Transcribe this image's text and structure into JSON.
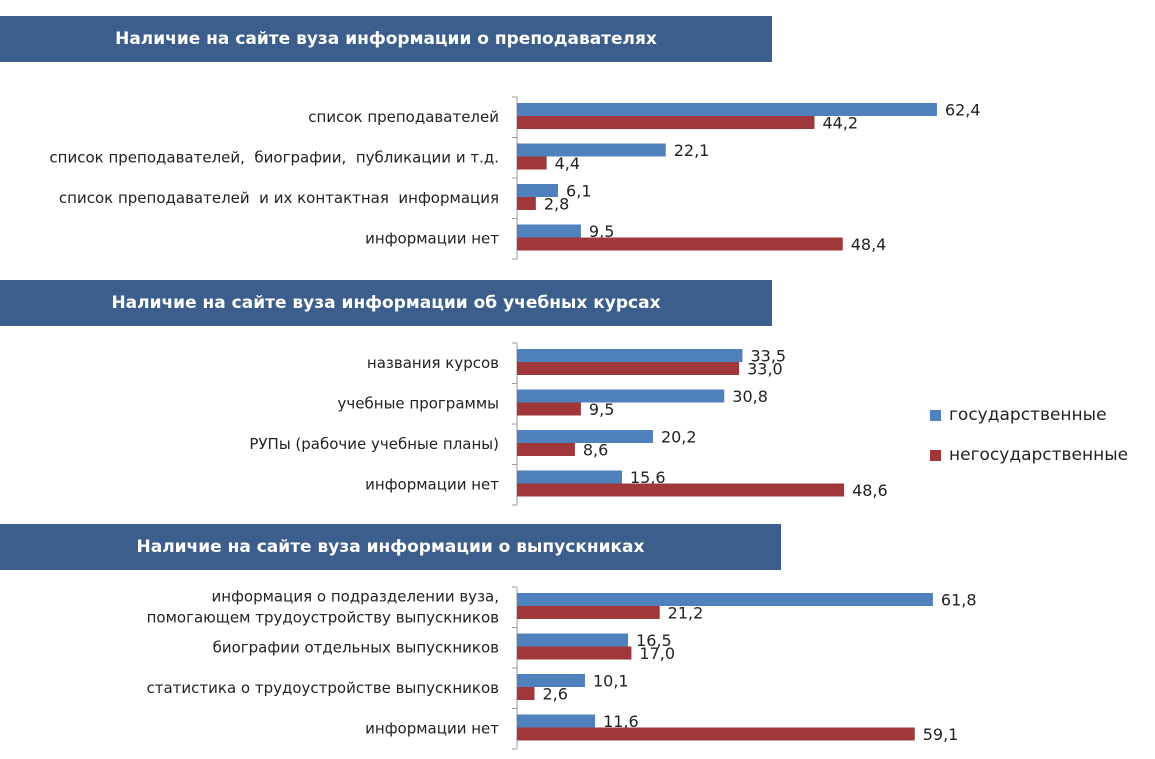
{
  "colors": {
    "gov": "#4f81bd",
    "nongov": "#a0373a",
    "banner": "#3b5e8c"
  },
  "legend": {
    "gov_label": "государственные",
    "nongov_label": "негосударственные"
  },
  "chart_data": [
    {
      "type": "bar",
      "orientation": "horizontal",
      "title": "Наличие на сайте вуза информации о преподавателях",
      "categories": [
        "список преподавателей",
        "список преподавателей,  биографии,  публикации и т.д.",
        "список преподавателей  и их контактная  информация",
        "информации нет"
      ],
      "series": [
        {
          "name": "государственные",
          "values": [
            62.4,
            22.1,
            6.1,
            9.5
          ],
          "labels": [
            "62,4",
            "22,1",
            "6,1",
            "9,5"
          ]
        },
        {
          "name": "негосударственные",
          "values": [
            44.2,
            4.4,
            2.8,
            48.4
          ],
          "labels": [
            "44,2",
            "4,4",
            "2,8",
            "48,4"
          ]
        }
      ]
    },
    {
      "type": "bar",
      "orientation": "horizontal",
      "title": "Наличие на сайте вуза информации об учебных курсах",
      "categories": [
        "названия курсов",
        "учебные программы",
        "РУПы (рабочие учебные планы)",
        "информации нет"
      ],
      "series": [
        {
          "name": "государственные",
          "values": [
            33.5,
            30.8,
            20.2,
            15.6
          ],
          "labels": [
            "33,5",
            "30,8",
            "20,2",
            "15,6"
          ]
        },
        {
          "name": "негосударственные",
          "values": [
            33.0,
            9.5,
            8.6,
            48.6
          ],
          "labels": [
            "33,0",
            "9,5",
            "8,6",
            "48,6"
          ]
        }
      ]
    },
    {
      "type": "bar",
      "orientation": "horizontal",
      "title": "Наличие на сайте вуза информации о выпускниках",
      "categories": [
        [
          "информация о подразделении вуза,",
          "помогающем трудоустройству выпускников"
        ],
        "биографии отдельных выпускников",
        "статистика о трудоустройстве выпускников",
        "информации нет"
      ],
      "series": [
        {
          "name": "государственные",
          "values": [
            61.8,
            16.5,
            10.1,
            11.6
          ],
          "labels": [
            "61,8",
            "16,5",
            "10,1",
            "11,6"
          ]
        },
        {
          "name": "негосударственные",
          "values": [
            21.2,
            17.0,
            2.6,
            59.1
          ],
          "labels": [
            "21,2",
            "17,0",
            "2,6",
            "59,1"
          ]
        }
      ]
    }
  ]
}
